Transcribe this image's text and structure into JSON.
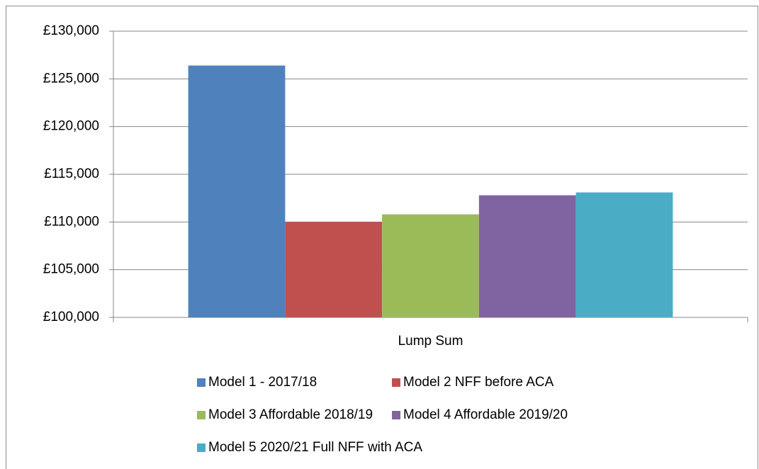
{
  "chart_data": {
    "type": "bar",
    "categories": [
      "Lump Sum"
    ],
    "series": [
      {
        "name": "Model 1 - 2017/18",
        "color": "#4f81bd",
        "values": [
          126400
        ]
      },
      {
        "name": "Model 2 NFF before ACA",
        "color": "#c0504d",
        "values": [
          110000
        ]
      },
      {
        "name": "Model 3 Affordable 2018/19",
        "color": "#9bbb59",
        "values": [
          110800
        ]
      },
      {
        "name": "Model 4 Affordable 2019/20",
        "color": "#8064a2",
        "values": [
          112800
        ]
      },
      {
        "name": "Model 5 2020/21 Full NFF with ACA",
        "color": "#4bacc6",
        "values": [
          113100
        ]
      }
    ],
    "ylim": [
      100000,
      130000
    ],
    "yticks": [
      {
        "value": 100000,
        "label": "£100,000"
      },
      {
        "value": 105000,
        "label": "£105,000"
      },
      {
        "value": 110000,
        "label": "£110,000"
      },
      {
        "value": 115000,
        "label": "£115,000"
      },
      {
        "value": 120000,
        "label": "£120,000"
      },
      {
        "value": 125000,
        "label": "£125,000"
      },
      {
        "value": 130000,
        "label": "£130,000"
      }
    ],
    "grid": true,
    "legend": "bottom"
  }
}
